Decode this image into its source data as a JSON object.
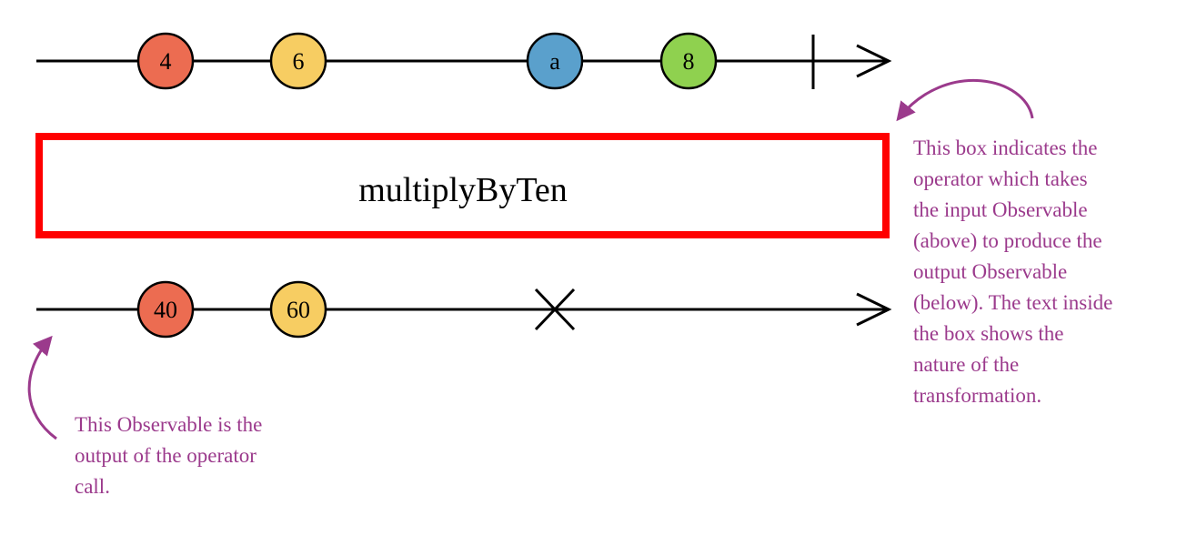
{
  "colors": {
    "line": "#000000",
    "operator_border": "#ff0000",
    "annotation": "#9b3a8c"
  },
  "input_observable": {
    "marbles": [
      {
        "label": "4",
        "color": "#ec6c51"
      },
      {
        "label": "6",
        "color": "#f7cd62"
      },
      {
        "label": "a",
        "color": "#5aa0cc"
      },
      {
        "label": "8",
        "color": "#8fd14f"
      }
    ],
    "terminal": "complete"
  },
  "operator": {
    "label": "multiplyByTen"
  },
  "output_observable": {
    "marbles": [
      {
        "label": "40",
        "color": "#ec6c51"
      },
      {
        "label": "60",
        "color": "#f7cd62"
      }
    ],
    "terminal": "error"
  },
  "annotations": {
    "operator_note": [
      "This box indicates the",
      "operator which takes",
      "the input Observable",
      "(above) to produce the",
      "output Observable",
      "(below). The text inside",
      "the box shows the",
      "nature of the",
      "transformation."
    ],
    "output_note": [
      "This Observable is the",
      "output of the operator",
      "call."
    ]
  }
}
